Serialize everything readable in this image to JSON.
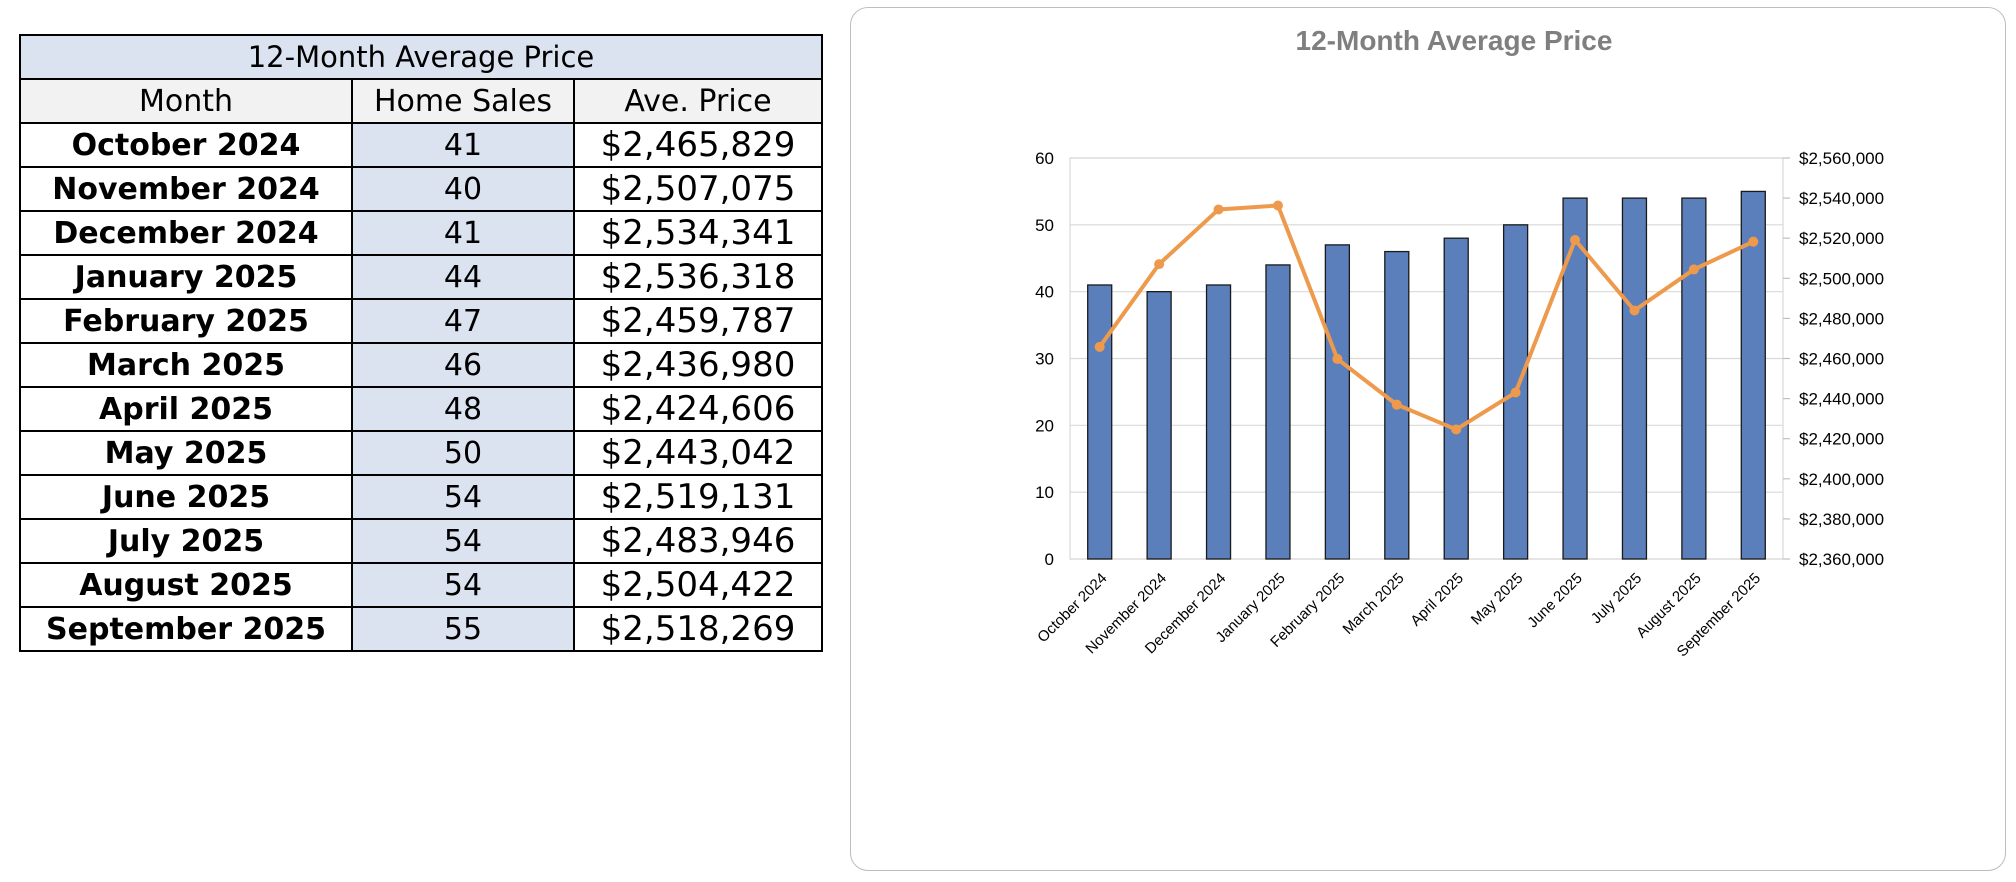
{
  "table": {
    "title": "12-Month Average Price",
    "headers": [
      "Month",
      "Home Sales",
      "Ave. Price"
    ],
    "rows": [
      {
        "month": "October 2024",
        "sales": "41",
        "price": "$2,465,829"
      },
      {
        "month": "November 2024",
        "sales": "40",
        "price": "$2,507,075"
      },
      {
        "month": "December 2024",
        "sales": "41",
        "price": "$2,534,341"
      },
      {
        "month": "January 2025",
        "sales": "44",
        "price": "$2,536,318"
      },
      {
        "month": "February 2025",
        "sales": "47",
        "price": "$2,459,787"
      },
      {
        "month": "March 2025",
        "sales": "46",
        "price": "$2,436,980"
      },
      {
        "month": "April 2025",
        "sales": "48",
        "price": "$2,424,606"
      },
      {
        "month": "May 2025",
        "sales": "50",
        "price": "$2,443,042"
      },
      {
        "month": "June 2025",
        "sales": "54",
        "price": "$2,519,131"
      },
      {
        "month": "July 2025",
        "sales": "54",
        "price": "$2,483,946"
      },
      {
        "month": "August 2025",
        "sales": "54",
        "price": "$2,504,422"
      },
      {
        "month": "September 2025",
        "sales": "55",
        "price": "$2,518,269"
      }
    ]
  },
  "chart_data": {
    "type": "bar",
    "title": "12-Month Average Price",
    "categories": [
      "October 2024",
      "November 2024",
      "December 2024",
      "January 2025",
      "February 2025",
      "March 2025",
      "April 2025",
      "May 2025",
      "June 2025",
      "July 2025",
      "August 2025",
      "September 2025"
    ],
    "series": [
      {
        "name": "Home Sales",
        "chart": "bar",
        "axis": "left",
        "color": "#5b7fbb",
        "values": [
          41,
          40,
          41,
          44,
          47,
          46,
          48,
          50,
          54,
          54,
          54,
          55
        ]
      },
      {
        "name": "Ave. Price",
        "chart": "line",
        "axis": "right",
        "color": "#ee9a4d",
        "values": [
          2465829,
          2507075,
          2534341,
          2536318,
          2459787,
          2436980,
          2424606,
          2443042,
          2519131,
          2483946,
          2504422,
          2518269
        ]
      }
    ],
    "ylim_left": [
      0,
      60
    ],
    "left_ticks": [
      "0",
      "10",
      "20",
      "30",
      "40",
      "50",
      "60"
    ],
    "ylim_right": [
      2360000,
      2560000
    ],
    "right_ticks": [
      "$2,360,000",
      "$2,380,000",
      "$2,400,000",
      "$2,420,000",
      "$2,440,000",
      "$2,460,000",
      "$2,480,000",
      "$2,500,000",
      "$2,520,000",
      "$2,540,000",
      "$2,560,000"
    ],
    "grid": true,
    "xlabel": "",
    "ylabel": ""
  }
}
